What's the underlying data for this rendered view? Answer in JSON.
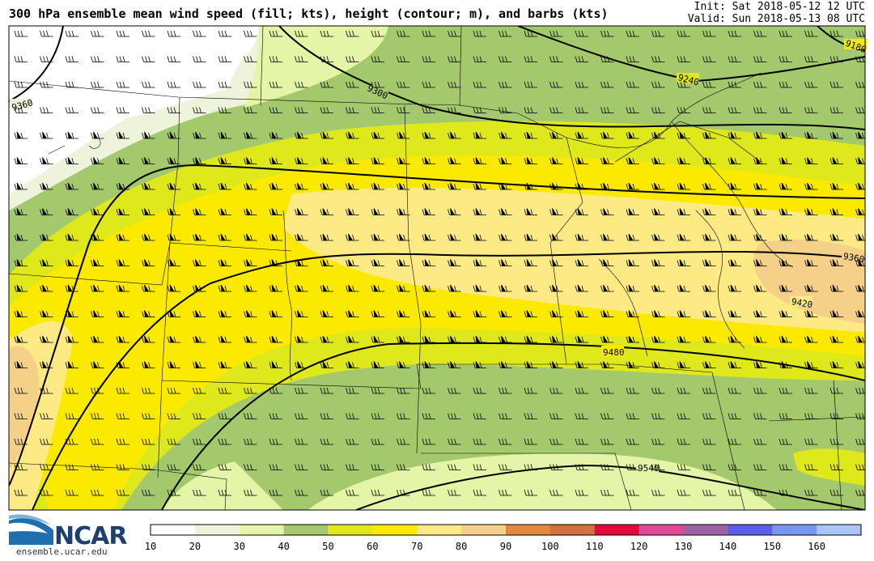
{
  "header": {
    "title": "300 hPa ensemble mean wind speed (fill; kts), height (contour; m), and barbs (kts)",
    "init": "Init: Sat 2018-05-12 12 UTC",
    "valid": "Valid: Sun 2018-05-13 08 UTC"
  },
  "logo": {
    "name": "NCAR",
    "site": "ensemble.ucar.edu"
  },
  "colorbar": {
    "ticks": [
      "10",
      "20",
      "30",
      "40",
      "50",
      "60",
      "70",
      "80",
      "90",
      "100",
      "110",
      "120",
      "130",
      "140",
      "150",
      "160"
    ],
    "colors": [
      "#ffffff",
      "#eef4dc",
      "#e4f5a8",
      "#a4c96c",
      "#dfe81a",
      "#fbea00",
      "#fdea84",
      "#f4d088",
      "#e3893e",
      "#d1703a",
      "#e4093a",
      "#e04a95",
      "#9a63a2",
      "#5b5ee8",
      "#7895f2",
      "#a9c6f7"
    ]
  },
  "contours": {
    "labels": [
      "9180",
      "9240",
      "9300",
      "9360",
      "9360",
      "9420",
      "9480",
      "9540"
    ]
  }
}
